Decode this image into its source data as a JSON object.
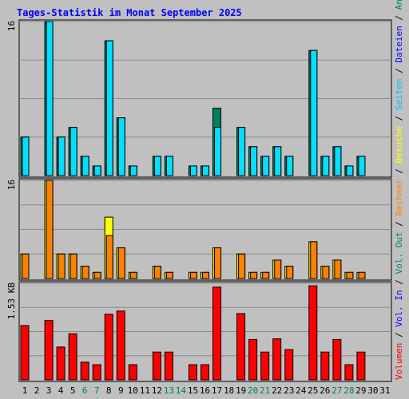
{
  "title": "Tages-Statistik im Monat September 2025",
  "colors": {
    "title": "#0000ff",
    "panel_bg": "#c0c0c0",
    "grid": "#8a8a8a",
    "hits": "#00805c",
    "files": "#00e0ff",
    "pages": "#00c0ff",
    "visits": "#ffff00",
    "sites": "#ff8000",
    "kbytes": "#ff0000",
    "weekend": "#00805c",
    "weekday": "#000000",
    "sep": "#000000"
  },
  "chart_data": {
    "type": "bar",
    "title": "Tages-Statistik im Monat September 2025",
    "categories": [
      "1",
      "2",
      "3",
      "4",
      "5",
      "6",
      "7",
      "8",
      "9",
      "10",
      "11",
      "12",
      "13",
      "14",
      "15",
      "16",
      "17",
      "18",
      "19",
      "20",
      "21",
      "22",
      "23",
      "24",
      "25",
      "26",
      "27",
      "28",
      "29",
      "30",
      "31"
    ],
    "weekend_days": [
      "6",
      "7",
      "13",
      "14",
      "20",
      "21",
      "27",
      "28"
    ],
    "legend_right": [
      {
        "text": "Volumen",
        "color": "#ff0000"
      },
      {
        "text": "Vol. In",
        "color": "#0000ff"
      },
      {
        "text": "Vol. Out",
        "color": "#008080"
      },
      {
        "text": "Rechner",
        "color": "#ff8000"
      },
      {
        "text": "Besuche",
        "color": "#ffff00"
      },
      {
        "text": "Seiten",
        "color": "#00c0ff"
      },
      {
        "text": "Dateien",
        "color": "#0000ff"
      },
      {
        "text": "Anfragen",
        "color": "#00805c"
      }
    ],
    "panels": [
      {
        "name": "requests",
        "max_label": "16",
        "ylim": [
          0,
          16
        ],
        "series": [
          {
            "name": "Anfragen",
            "values": [
              4,
              0,
              16,
              4,
              5,
              2,
              1,
              14,
              6,
              1,
              0,
              2,
              2,
              0,
              1,
              1,
              7,
              0,
              5,
              3,
              2,
              3,
              2,
              0,
              13,
              2,
              3,
              1,
              2,
              0,
              0
            ]
          },
          {
            "name": "Dateien",
            "values": [
              4,
              0,
              16,
              4,
              5,
              2,
              1,
              14,
              6,
              1,
              0,
              2,
              2,
              0,
              1,
              1,
              5,
              0,
              5,
              3,
              2,
              3,
              2,
              0,
              13,
              2,
              3,
              1,
              2,
              0,
              0
            ]
          }
        ]
      },
      {
        "name": "visits",
        "max_label": "16",
        "ylim": [
          0,
          16
        ],
        "series": [
          {
            "name": "Besuche",
            "values": [
              4,
              0,
              16,
              4,
              4,
              2,
              1,
              10,
              5,
              1,
              0,
              2,
              1,
              0,
              1,
              1,
              5,
              0,
              4,
              1,
              1,
              3,
              2,
              0,
              6,
              2,
              3,
              1,
              1,
              0,
              0
            ]
          },
          {
            "name": "Rechner",
            "values": [
              4,
              0,
              16,
              4,
              4,
              2,
              1,
              7,
              5,
              1,
              0,
              2,
              1,
              0,
              1,
              1,
              5,
              0,
              4,
              1,
              1,
              3,
              2,
              0,
              6,
              2,
              3,
              1,
              1,
              0,
              0
            ]
          }
        ]
      },
      {
        "name": "volume",
        "max_label": "1.53 KB",
        "ylim": [
          0,
          1.53
        ],
        "series": [
          {
            "name": "Volumen",
            "values": [
              0.86,
              0,
              0.94,
              0.52,
              0.73,
              0.28,
              0.24,
              1.04,
              1.09,
              0.24,
              0,
              0.44,
              0.44,
              0,
              0.24,
              0.24,
              1.47,
              0,
              1.05,
              0.64,
              0.44,
              0.65,
              0.48,
              0,
              1.49,
              0.44,
              0.64,
              0.24,
              0.44,
              0,
              0
            ]
          }
        ]
      }
    ]
  }
}
